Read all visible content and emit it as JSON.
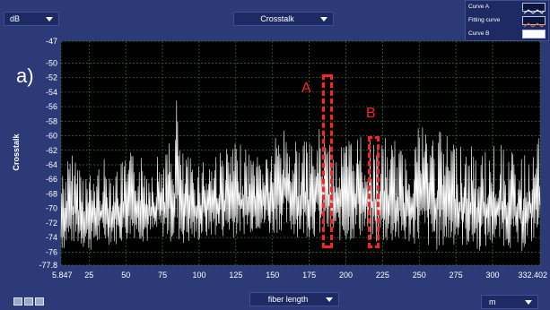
{
  "header": {
    "unit_select": "dB",
    "quantity_select": "Crosstalk"
  },
  "legend": [
    {
      "label": "Curve A",
      "color": "#ffffff"
    },
    {
      "label": "Fitting curve",
      "color": "#e07020"
    },
    {
      "label": "Curve B",
      "color": "#ffffff"
    }
  ],
  "panel_letter": "a)",
  "annotations": {
    "a": "A",
    "b": "B"
  },
  "footer": {
    "x_quantity_select": "fiber length",
    "x_unit_select": "m"
  },
  "colors": {
    "frame": "#2c3a78",
    "plot_bg": "#000000",
    "grid": "#2e7d2e",
    "trace": "#ffffff",
    "annotation": "#ff2222"
  },
  "chart_data": {
    "type": "line",
    "title": "",
    "xlabel": "",
    "ylabel": "Crosstalk",
    "xlim": [
      5.847,
      332.402
    ],
    "ylim": [
      -77.8,
      -47
    ],
    "xticks": [
      5.847,
      25,
      50,
      75,
      100,
      125,
      150,
      175,
      200,
      225,
      250,
      275,
      300,
      332.402
    ],
    "xtick_labels": [
      "5.847",
      "25",
      "50",
      "75",
      "100",
      "125",
      "150",
      "175",
      "200",
      "225",
      "250",
      "275",
      "300",
      "332.402"
    ],
    "yticks": [
      -47,
      -50,
      -52,
      -54,
      -56,
      -58,
      -60,
      -62,
      -64,
      -66,
      -68,
      -70,
      -72,
      -74,
      -76,
      -77.8
    ],
    "ytick_labels": [
      "-47",
      "-50",
      "-52",
      "-54",
      "-56",
      "-58",
      "-60",
      "-62",
      "-64",
      "-66",
      "-68",
      "-70",
      "-72",
      "-74",
      "-76",
      "-77.8"
    ],
    "grid": true,
    "series": [
      {
        "x": [
          5.847,
          15,
          25,
          35,
          45,
          55,
          65,
          75,
          83,
          85,
          87,
          95,
          110,
          125,
          140,
          150,
          155,
          165,
          175,
          185,
          190,
          200,
          210,
          220,
          230,
          240,
          250,
          260,
          275,
          290,
          305,
          320,
          332.402
        ],
        "upper": [
          -64,
          -62,
          -65,
          -63,
          -64,
          -62,
          -63,
          -62,
          -60,
          -51,
          -62,
          -63,
          -62,
          -61,
          -62,
          -61,
          -58,
          -60,
          -61,
          -58,
          -62,
          -60,
          -59,
          -61,
          -60,
          -62,
          -57,
          -59,
          -60,
          -62,
          -61,
          -63,
          -60
        ],
        "lower": [
          -76,
          -75,
          -76,
          -75,
          -75,
          -74,
          -75,
          -74,
          -75,
          -74,
          -75,
          -75,
          -74,
          -74,
          -73,
          -74,
          -73,
          -74,
          -74,
          -74,
          -74,
          -75,
          -74,
          -75,
          -75,
          -75,
          -75,
          -76,
          -75,
          -76,
          -75,
          -76,
          -74
        ]
      }
    ],
    "annotation_boxes": [
      {
        "label": "A",
        "x_range": [
          184,
          191
        ],
        "y_range": [
          -75.5,
          -51.5
        ]
      },
      {
        "label": "B",
        "x_range": [
          215,
          223
        ],
        "y_range": [
          -75.5,
          -60
        ]
      }
    ]
  }
}
